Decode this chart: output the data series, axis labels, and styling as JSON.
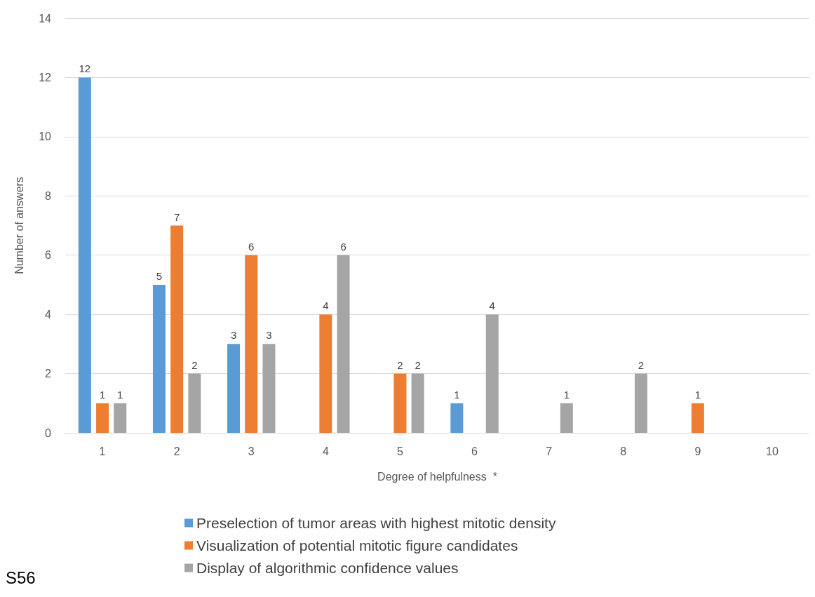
{
  "chart_data": {
    "type": "bar",
    "xlabel": "Degree of helpfulness  *",
    "ylabel": "Number of answers",
    "categories": [
      "1",
      "2",
      "3",
      "4",
      "5",
      "6",
      "7",
      "8",
      "9",
      "10"
    ],
    "series": [
      {
        "name": "Preselection of tumor areas with highest mitotic density",
        "color": "#5b9bd5",
        "values": [
          12,
          5,
          3,
          0,
          0,
          1,
          0,
          0,
          0,
          0
        ],
        "value_labels": [
          "12",
          "5",
          "3",
          null,
          null,
          "1",
          null,
          null,
          null,
          null
        ]
      },
      {
        "name": "Visualization of potential mitotic figure candidates",
        "color": "#ed7d31",
        "values": [
          1,
          7,
          6,
          4,
          2,
          0,
          0,
          0,
          1,
          0
        ],
        "value_labels": [
          "1",
          "7",
          "6",
          "4",
          "2",
          null,
          null,
          null,
          "1",
          null
        ]
      },
      {
        "name": "Display of algorithmic confidence values",
        "color": "#a5a5a5",
        "values": [
          1,
          2,
          3,
          6,
          2,
          4,
          1,
          2,
          0,
          0
        ],
        "value_labels": [
          "1",
          "2",
          "3",
          "6",
          "2",
          "4",
          "1",
          "2",
          null,
          null
        ]
      }
    ],
    "ylim": [
      0,
      14
    ],
    "yticks": [
      0,
      2,
      4,
      6,
      8,
      10,
      12,
      14
    ],
    "grid": "y",
    "legend": "bottom",
    "annotations": [
      "S56"
    ]
  }
}
